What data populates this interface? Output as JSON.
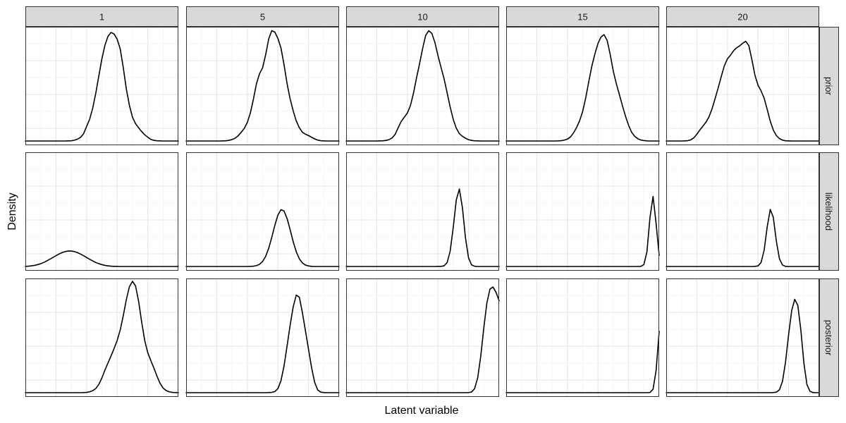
{
  "chart_data": {
    "type": "line",
    "xlabel": "Latent variable",
    "ylabel": "Density",
    "columns": [
      "1",
      "5",
      "10",
      "15",
      "20"
    ],
    "rows": [
      "prior",
      "likelihood",
      "posterior"
    ],
    "xlim": [
      0,
      100
    ],
    "ylim": [
      0,
      1
    ],
    "grid": true,
    "legend": "none",
    "x": [
      0,
      2,
      4,
      6,
      8,
      10,
      12,
      14,
      16,
      18,
      20,
      22,
      24,
      26,
      28,
      30,
      32,
      34,
      36,
      38,
      40,
      42,
      44,
      46,
      48,
      50,
      52,
      54,
      56,
      58,
      60,
      62,
      64,
      66,
      68,
      70,
      72,
      74,
      76,
      78,
      80,
      82,
      84,
      86,
      88,
      90,
      92,
      94,
      96,
      98,
      100
    ],
    "panels": [
      {
        "row": "prior",
        "column": "1",
        "values": [
          0,
          0,
          0,
          0,
          0,
          0,
          0,
          0,
          0,
          0,
          0,
          0,
          0,
          0,
          0.001,
          0.002,
          0.007,
          0.016,
          0.032,
          0.064,
          0.13,
          0.195,
          0.294,
          0.428,
          0.583,
          0.737,
          0.86,
          0.94,
          0.975,
          0.96,
          0.914,
          0.826,
          0.658,
          0.466,
          0.32,
          0.214,
          0.156,
          0.119,
          0.085,
          0.056,
          0.034,
          0.014,
          0.006,
          0.002,
          0.001,
          0,
          0,
          0,
          0,
          0,
          0
        ]
      },
      {
        "row": "prior",
        "column": "5",
        "values": [
          0,
          0,
          0,
          0,
          0,
          0,
          0,
          0,
          0,
          0,
          0,
          0,
          0.001,
          0.002,
          0.006,
          0.013,
          0.025,
          0.047,
          0.078,
          0.113,
          0.166,
          0.252,
          0.376,
          0.516,
          0.604,
          0.658,
          0.775,
          0.917,
          0.991,
          0.978,
          0.92,
          0.835,
          0.686,
          0.514,
          0.377,
          0.27,
          0.18,
          0.119,
          0.079,
          0.061,
          0.049,
          0.034,
          0.019,
          0.008,
          0.003,
          0.001,
          0,
          0,
          0,
          0,
          0
        ]
      },
      {
        "row": "prior",
        "column": "10",
        "values": [
          0,
          0,
          0,
          0,
          0,
          0,
          0,
          0,
          0,
          0,
          0,
          0.001,
          0.002,
          0.005,
          0.012,
          0.027,
          0.059,
          0.119,
          0.176,
          0.214,
          0.251,
          0.318,
          0.429,
          0.567,
          0.695,
          0.831,
          0.949,
          0.99,
          0.967,
          0.885,
          0.767,
          0.662,
          0.559,
          0.433,
          0.304,
          0.194,
          0.115,
          0.066,
          0.042,
          0.025,
          0.012,
          0.005,
          0.002,
          0.001,
          0,
          0,
          0,
          0,
          0,
          0,
          0
        ]
      },
      {
        "row": "prior",
        "column": "15",
        "values": [
          0,
          0,
          0,
          0,
          0,
          0,
          0,
          0,
          0,
          0,
          0,
          0,
          0,
          0,
          0,
          0,
          0,
          0.001,
          0.003,
          0.008,
          0.017,
          0.036,
          0.072,
          0.121,
          0.182,
          0.266,
          0.388,
          0.535,
          0.673,
          0.783,
          0.876,
          0.934,
          0.955,
          0.903,
          0.776,
          0.627,
          0.514,
          0.416,
          0.316,
          0.222,
          0.141,
          0.079,
          0.042,
          0.021,
          0.009,
          0.004,
          0.001,
          0,
          0,
          0,
          0
        ]
      },
      {
        "row": "prior",
        "column": "20",
        "values": [
          0,
          0,
          0,
          0,
          0,
          0,
          0.001,
          0.003,
          0.01,
          0.028,
          0.061,
          0.099,
          0.134,
          0.169,
          0.218,
          0.291,
          0.383,
          0.479,
          0.58,
          0.676,
          0.737,
          0.77,
          0.81,
          0.837,
          0.854,
          0.878,
          0.895,
          0.856,
          0.73,
          0.59,
          0.501,
          0.45,
          0.385,
          0.284,
          0.178,
          0.098,
          0.048,
          0.022,
          0.008,
          0.002,
          0.001,
          0,
          0,
          0,
          0,
          0,
          0,
          0,
          0,
          0,
          0
        ]
      },
      {
        "row": "likelihood",
        "column": "1",
        "values": [
          0.001,
          0.003,
          0.006,
          0.01,
          0.017,
          0.025,
          0.036,
          0.05,
          0.065,
          0.081,
          0.097,
          0.112,
          0.125,
          0.134,
          0.139,
          0.139,
          0.134,
          0.125,
          0.112,
          0.097,
          0.081,
          0.065,
          0.05,
          0.036,
          0.025,
          0.017,
          0.01,
          0.006,
          0.003,
          0.001,
          0.001,
          0,
          0,
          0,
          0,
          0,
          0,
          0,
          0,
          0,
          0,
          0,
          0,
          0,
          0,
          0,
          0,
          0,
          0,
          0,
          0
        ]
      },
      {
        "row": "likelihood",
        "column": "5",
        "values": [
          0,
          0,
          0,
          0,
          0,
          0,
          0,
          0,
          0,
          0,
          0,
          0,
          0,
          0,
          0,
          0,
          0,
          0,
          0,
          0,
          0,
          0.001,
          0.003,
          0.008,
          0.02,
          0.045,
          0.091,
          0.164,
          0.262,
          0.37,
          0.462,
          0.51,
          0.498,
          0.431,
          0.33,
          0.222,
          0.132,
          0.069,
          0.032,
          0.013,
          0.005,
          0.001,
          0,
          0,
          0,
          0,
          0,
          0,
          0,
          0,
          0
        ]
      },
      {
        "row": "likelihood",
        "column": "10",
        "values": [
          0,
          0,
          0,
          0,
          0,
          0,
          0,
          0,
          0,
          0,
          0,
          0,
          0,
          0,
          0,
          0,
          0,
          0,
          0,
          0,
          0,
          0,
          0,
          0,
          0,
          0,
          0,
          0,
          0,
          0,
          0.001,
          0.001,
          0.006,
          0.035,
          0.138,
          0.351,
          0.598,
          0.695,
          0.528,
          0.256,
          0.077,
          0.014,
          0.002,
          0,
          0,
          0,
          0,
          0,
          0,
          0,
          0
        ]
      },
      {
        "row": "likelihood",
        "column": "15",
        "values": [
          0,
          0,
          0,
          0,
          0,
          0,
          0,
          0,
          0,
          0,
          0,
          0,
          0,
          0,
          0,
          0,
          0,
          0,
          0,
          0,
          0,
          0,
          0,
          0,
          0,
          0,
          0,
          0,
          0,
          0,
          0,
          0,
          0,
          0,
          0,
          0,
          0,
          0,
          0,
          0,
          0,
          0,
          0,
          0,
          0.001,
          0.017,
          0.132,
          0.44,
          0.629,
          0.385,
          0.1
        ]
      },
      {
        "row": "likelihood",
        "column": "20",
        "values": [
          0,
          0,
          0,
          0,
          0,
          0,
          0,
          0,
          0,
          0,
          0,
          0,
          0,
          0,
          0,
          0,
          0,
          0,
          0,
          0,
          0,
          0,
          0,
          0,
          0,
          0,
          0,
          0,
          0,
          0.001,
          0.005,
          0.036,
          0.146,
          0.355,
          0.512,
          0.441,
          0.226,
          0.069,
          0.013,
          0.001,
          0,
          0,
          0,
          0,
          0,
          0,
          0,
          0,
          0,
          0,
          0
        ]
      },
      {
        "row": "posterior",
        "column": "1",
        "values": [
          0,
          0,
          0,
          0,
          0,
          0,
          0,
          0,
          0,
          0,
          0,
          0,
          0,
          0,
          0,
          0,
          0,
          0,
          0,
          0.001,
          0.003,
          0.008,
          0.018,
          0.037,
          0.074,
          0.132,
          0.203,
          0.267,
          0.33,
          0.397,
          0.469,
          0.563,
          0.692,
          0.836,
          0.951,
          1.0,
          0.959,
          0.822,
          0.635,
          0.469,
          0.359,
          0.288,
          0.221,
          0.149,
          0.085,
          0.042,
          0.019,
          0.008,
          0.003,
          0.001,
          0
        ]
      },
      {
        "row": "posterior",
        "column": "5",
        "values": [
          0,
          0,
          0,
          0,
          0,
          0,
          0,
          0,
          0,
          0,
          0,
          0,
          0,
          0,
          0,
          0,
          0,
          0,
          0,
          0,
          0,
          0,
          0,
          0,
          0,
          0,
          0,
          0.001,
          0.003,
          0.01,
          0.037,
          0.107,
          0.24,
          0.42,
          0.607,
          0.771,
          0.876,
          0.857,
          0.719,
          0.555,
          0.391,
          0.226,
          0.094,
          0.025,
          0.005,
          0.001,
          0,
          0,
          0,
          0,
          0
        ]
      },
      {
        "row": "posterior",
        "column": "10",
        "values": [
          0,
          0,
          0,
          0,
          0,
          0,
          0,
          0,
          0,
          0,
          0,
          0,
          0,
          0,
          0,
          0,
          0,
          0,
          0,
          0,
          0,
          0,
          0,
          0,
          0,
          0,
          0,
          0,
          0,
          0,
          0,
          0,
          0,
          0,
          0,
          0,
          0,
          0,
          0,
          0,
          0.001,
          0.006,
          0.037,
          0.135,
          0.33,
          0.584,
          0.807,
          0.93,
          0.949,
          0.9,
          0.825
        ]
      },
      {
        "row": "posterior",
        "column": "15",
        "values": [
          0,
          0,
          0,
          0,
          0,
          0,
          0,
          0,
          0,
          0,
          0,
          0,
          0,
          0,
          0,
          0,
          0,
          0,
          0,
          0,
          0,
          0,
          0,
          0,
          0,
          0,
          0,
          0,
          0,
          0,
          0,
          0,
          0,
          0,
          0,
          0,
          0,
          0,
          0,
          0,
          0,
          0,
          0,
          0,
          0,
          0,
          0,
          0.002,
          0.031,
          0.2,
          0.551
        ]
      },
      {
        "row": "posterior",
        "column": "20",
        "values": [
          0,
          0,
          0,
          0,
          0,
          0,
          0,
          0,
          0,
          0,
          0,
          0,
          0,
          0,
          0,
          0,
          0,
          0,
          0,
          0,
          0,
          0,
          0,
          0,
          0,
          0,
          0,
          0,
          0,
          0,
          0,
          0,
          0,
          0,
          0,
          0.001,
          0.005,
          0.026,
          0.102,
          0.277,
          0.521,
          0.736,
          0.838,
          0.785,
          0.563,
          0.264,
          0.072,
          0.012,
          0.001,
          0,
          0
        ]
      }
    ]
  }
}
